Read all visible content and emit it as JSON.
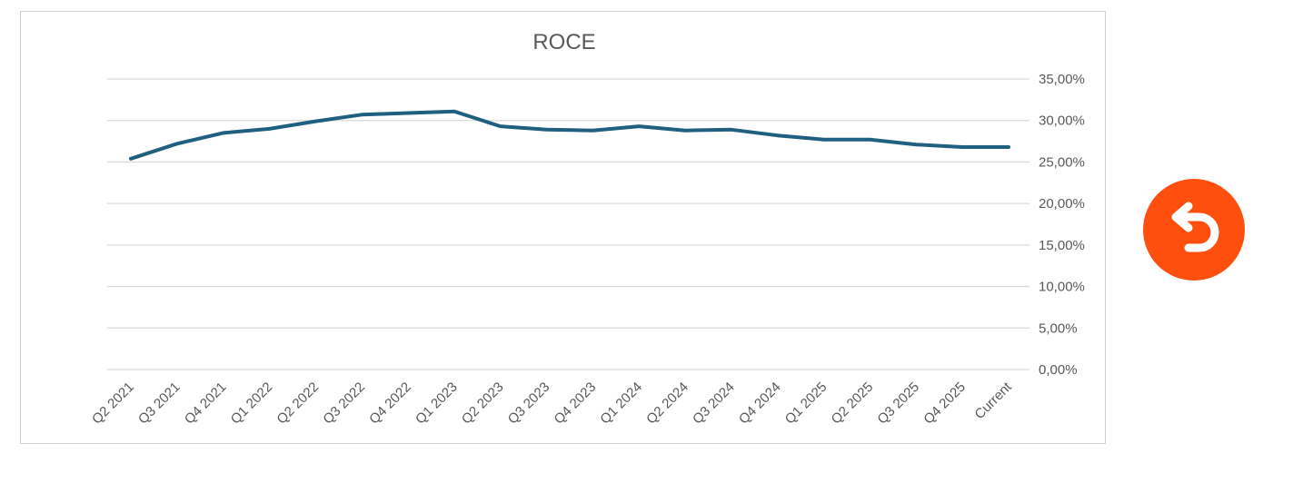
{
  "chart_data": {
    "type": "line",
    "title": "ROCE",
    "categories": [
      "Q2 2021",
      "Q3 2021",
      "Q4 2021",
      "Q1 2022",
      "Q2 2022",
      "Q3 2022",
      "Q4 2022",
      "Q1 2023",
      "Q2 2023",
      "Q3 2023",
      "Q4 2023",
      "Q1 2024",
      "Q2 2024",
      "Q3 2024",
      "Q4 2024",
      "Q1 2025",
      "Q2 2025",
      "Q3 2025",
      "Q4 2025",
      "Current"
    ],
    "series": [
      {
        "values": [
          25.4,
          27.2,
          28.5,
          29.0,
          29.9,
          30.7,
          30.9,
          31.1,
          29.3,
          28.9,
          28.8,
          29.3,
          28.8,
          28.9,
          28.2,
          27.7,
          27.7,
          27.1,
          26.8,
          26.8
        ]
      }
    ],
    "ylim": [
      0,
      35
    ],
    "yticks": [
      0,
      5,
      10,
      15,
      20,
      25,
      30,
      35
    ],
    "ytick_labels": [
      "0,00%",
      "5,00%",
      "10,00%",
      "15,00%",
      "20,00%",
      "25,00%",
      "30,00%",
      "35,00%"
    ],
    "y_axis_position": "right",
    "grid": true,
    "legend": "none",
    "line_color": "#1f5f7f"
  },
  "controls": {
    "back_icon": "undo-arrow-icon",
    "back_color": "#ff4f0f"
  }
}
